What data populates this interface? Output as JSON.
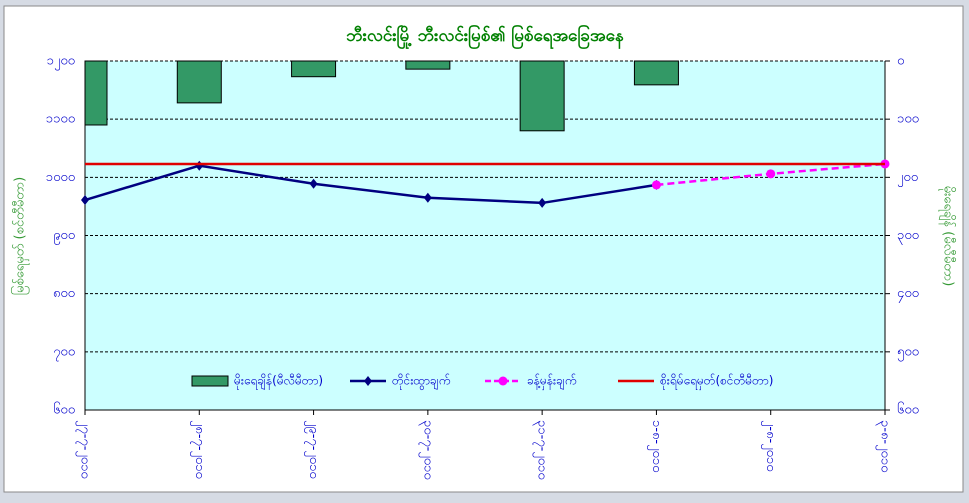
{
  "chart_data": {
    "type": "combo",
    "title": "ဘီးလင်းမြို့ ဘီးလင်းမြစ်၏ မြစ်ရေအခြေအနေ",
    "y_label": "မြစ်ရေမှတ် (စင်တီမီတာ)",
    "y2_label": "မိုးရေချိန် (မီလီမီတာ)",
    "categories": [
      "၂၇-၇-၂၀၁၀",
      "၂၈-၇-၂၀၁၀",
      "၂၉-၇-၂၀၁၀",
      "၃၀-၇-၂၀၁၀",
      "၃၁-၇-၂၀၁၀",
      "၁-၈-၂၀၁၀",
      "၂-၈-၂၀၁၀",
      "၃-၈-၂၀၁၀"
    ],
    "series": [
      {
        "name": "မိုးရေချိန်(မီလီမီတာ)",
        "kind": "bar",
        "axis": "y2",
        "color": "#339966",
        "values": [
          110,
          72,
          27,
          14,
          120,
          41,
          null,
          null
        ]
      },
      {
        "name": "တိုင်းထွာချက်",
        "kind": "line",
        "color": "#000080",
        "marker": "diamond",
        "values": [
          961,
          1020,
          989,
          965,
          956,
          987,
          null,
          null
        ]
      },
      {
        "name": "ခန့်မှန်းချက်",
        "kind": "line",
        "dashed": true,
        "color": "#ff00ff",
        "marker": "circle",
        "values": [
          null,
          null,
          null,
          null,
          null,
          987,
          1006,
          1023
        ]
      },
      {
        "name": "စိုးရိမ်ရေမှတ်(စင်တီမီတာ)",
        "kind": "line",
        "color": "#e00000",
        "values": [
          1023,
          1023,
          1023,
          1023,
          1023,
          1023,
          1023,
          1023
        ]
      }
    ],
    "ylim": [
      600,
      1200
    ],
    "yticks": [
      {
        "value": 600,
        "label": "၆၀၀"
      },
      {
        "value": 700,
        "label": "၇၀၀"
      },
      {
        "value": 800,
        "label": "၈၀၀"
      },
      {
        "value": 900,
        "label": "၉၀၀"
      },
      {
        "value": 1000,
        "label": "၁၀၀၀"
      },
      {
        "value": 1100,
        "label": "၁၁၀၀"
      },
      {
        "value": 1200,
        "label": "၁၂၀၀"
      }
    ],
    "y2lim": [
      0,
      600
    ],
    "y2_reversed": true,
    "y2ticks": [
      {
        "value": 0,
        "label": "၀"
      },
      {
        "value": 100,
        "label": "၁၀၀"
      },
      {
        "value": 200,
        "label": "၂၀၀"
      },
      {
        "value": 300,
        "label": "၃၀၀"
      },
      {
        "value": 400,
        "label": "၄၀၀"
      },
      {
        "value": 500,
        "label": "၅၀၀"
      },
      {
        "value": 600,
        "label": "၆၀၀"
      }
    ],
    "grid": true
  }
}
